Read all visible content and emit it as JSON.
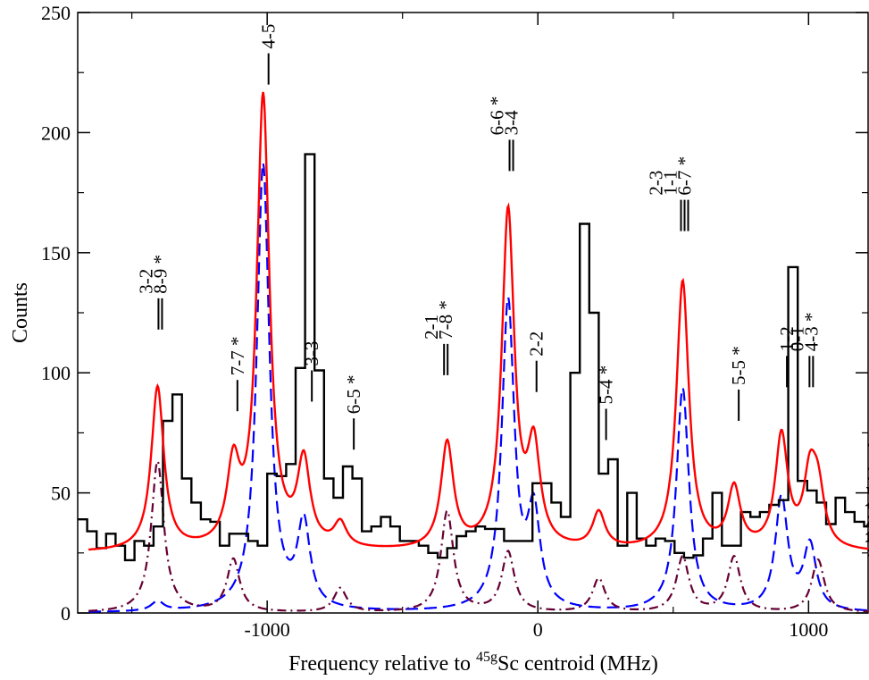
{
  "chart_data": {
    "type": "line",
    "title": "",
    "xlabel": "Frequency relative to ",
    "xlabel_sup": "45g",
    "xlabel_tail": "Sc centroid (MHz)",
    "ylabel": "Counts",
    "xlim": [
      -1700,
      1220
    ],
    "ylim": [
      0,
      250
    ],
    "x_ticks": [
      -1000,
      0,
      1000
    ],
    "x_tick_labels": [
      "-1000",
      "0",
      "1000"
    ],
    "y_ticks": [
      0,
      50,
      100,
      150,
      200,
      250
    ],
    "y_tick_labels": [
      "0",
      "50",
      "100",
      "150",
      "200",
      "250"
    ],
    "grid": false,
    "legend": "none",
    "histogram": {
      "name": "",
      "color": "#000000",
      "bin_width": 35,
      "x_start": -1700,
      "counts": [
        39,
        34,
        27,
        33,
        28,
        22,
        30,
        28,
        36,
        80,
        91,
        56,
        46,
        39,
        38,
        28,
        33,
        33,
        30,
        28,
        58,
        57,
        62,
        102,
        191,
        101,
        56,
        48,
        61,
        56,
        34,
        36,
        40,
        36,
        30,
        30,
        28,
        25,
        23,
        27,
        32,
        34,
        36,
        35,
        35,
        30,
        30,
        30,
        54,
        54,
        46,
        40,
        100,
        162,
        125,
        58,
        64,
        28,
        50,
        31,
        28,
        31,
        30,
        25,
        23,
        24,
        31,
        50,
        28,
        28,
        42,
        40,
        42,
        45,
        47,
        144,
        55,
        51,
        46,
        37,
        48,
        42,
        38,
        36,
        37,
        45,
        52,
        30,
        44,
        33,
        56,
        50,
        60,
        70,
        51,
        40,
        26,
        31,
        24,
        32
      ]
    },
    "fit_curve": {
      "name": "",
      "color": "#ff0000",
      "style": "solid",
      "background": 25,
      "peaks": [
        {
          "x": -1405,
          "amp": 68,
          "width": 28
        },
        {
          "x": -1125,
          "amp": 32,
          "width": 28
        },
        {
          "x": -1015,
          "amp": 188,
          "width": 28
        },
        {
          "x": -865,
          "amp": 35,
          "width": 28
        },
        {
          "x": -730,
          "amp": 10,
          "width": 28
        },
        {
          "x": -335,
          "amp": 44,
          "width": 28
        },
        {
          "x": -110,
          "amp": 140,
          "width": 28
        },
        {
          "x": -15,
          "amp": 40,
          "width": 28
        },
        {
          "x": 225,
          "amp": 15,
          "width": 28
        },
        {
          "x": 535,
          "amp": 112,
          "width": 28
        },
        {
          "x": 725,
          "amp": 25,
          "width": 28
        },
        {
          "x": 900,
          "amp": 47,
          "width": 28
        },
        {
          "x": 1005,
          "amp": 28,
          "width": 28
        },
        {
          "x": 1035,
          "amp": 22,
          "width": 28
        }
      ]
    },
    "component_curves": [
      {
        "name": "",
        "color": "#0000ff",
        "style": "dashed",
        "peaks": [
          {
            "x": -1405,
            "amp": 4,
            "width": 28
          },
          {
            "x": -1015,
            "amp": 186,
            "width": 28
          },
          {
            "x": -865,
            "amp": 35,
            "width": 28
          },
          {
            "x": -110,
            "amp": 128,
            "width": 28
          },
          {
            "x": -15,
            "amp": 39,
            "width": 28
          },
          {
            "x": 535,
            "amp": 93,
            "width": 28
          },
          {
            "x": 900,
            "amp": 47,
            "width": 28
          },
          {
            "x": 1005,
            "amp": 27,
            "width": 28
          }
        ]
      },
      {
        "name": "",
        "color": "#660033",
        "style": "dashdot",
        "peaks": [
          {
            "x": -1405,
            "amp": 63,
            "width": 28
          },
          {
            "x": -1125,
            "amp": 22,
            "width": 28
          },
          {
            "x": -730,
            "amp": 10,
            "width": 28
          },
          {
            "x": -335,
            "amp": 42,
            "width": 28
          },
          {
            "x": -110,
            "amp": 25,
            "width": 28
          },
          {
            "x": 225,
            "amp": 14,
            "width": 28
          },
          {
            "x": 535,
            "amp": 23,
            "width": 28
          },
          {
            "x": 725,
            "amp": 23,
            "width": 28
          },
          {
            "x": 1035,
            "amp": 22,
            "width": 28
          }
        ]
      }
    ],
    "annotations": [
      {
        "x": -1395,
        "y": 118,
        "lines": 2,
        "text": "3-2\n8-9 *"
      },
      {
        "x": -1110,
        "y": 84,
        "lines": 1,
        "text": "7-7 *"
      },
      {
        "x": -995,
        "y": 220,
        "lines": 1,
        "text": "4-5"
      },
      {
        "x": -835,
        "y": 88,
        "lines": 1,
        "text": "3-3"
      },
      {
        "x": -680,
        "y": 68,
        "lines": 1,
        "text": "6-5 *"
      },
      {
        "x": -340,
        "y": 99,
        "lines": 2,
        "text": "2-1\n7-8 *"
      },
      {
        "x": -98,
        "y": 184,
        "lines": 2,
        "text": "6-6 *\n3-4"
      },
      {
        "x": -5,
        "y": 92,
        "lines": 1,
        "text": "2-2"
      },
      {
        "x": 252,
        "y": 72,
        "lines": 1,
        "text": "5-4 *"
      },
      {
        "x": 542,
        "y": 159,
        "lines": 3,
        "text": "2-3\n1-1\n6-7 *"
      },
      {
        "x": 742,
        "y": 80,
        "lines": 1,
        "text": "5-5 *"
      },
      {
        "x": 920,
        "y": 94,
        "lines": 1,
        "text": "1-2"
      },
      {
        "x": 1010,
        "y": 94,
        "lines": 2,
        "text": "0-1\n4-3 *"
      }
    ]
  }
}
